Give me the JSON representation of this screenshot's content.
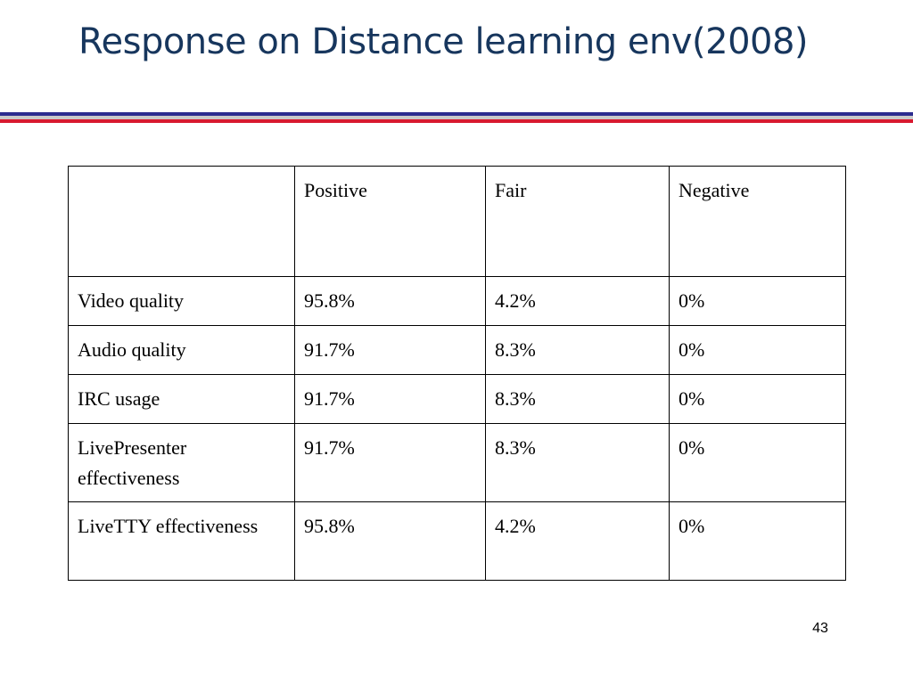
{
  "slide": {
    "title": "Response on Distance learning env(2008)",
    "page_number": "43"
  },
  "colors": {
    "title": "#17365d",
    "rule_blue": "#2c2c8f",
    "rule_gray": "#c9c9c9",
    "rule_red": "#d8192f"
  },
  "table": {
    "headers": [
      "",
      "Positive",
      "Fair",
      "Negative"
    ],
    "rows": [
      [
        "Video quality",
        "95.8%",
        "4.2%",
        "0%"
      ],
      [
        "Audio quality",
        "91.7%",
        "8.3%",
        "0%"
      ],
      [
        "IRC usage",
        "91.7%",
        "8.3%",
        "0%"
      ],
      [
        "LivePresenter effectiveness",
        "91.7%",
        "8.3%",
        "0%"
      ],
      [
        "LiveTTY effectiveness",
        "95.8%",
        "4.2%",
        "0%"
      ]
    ]
  }
}
